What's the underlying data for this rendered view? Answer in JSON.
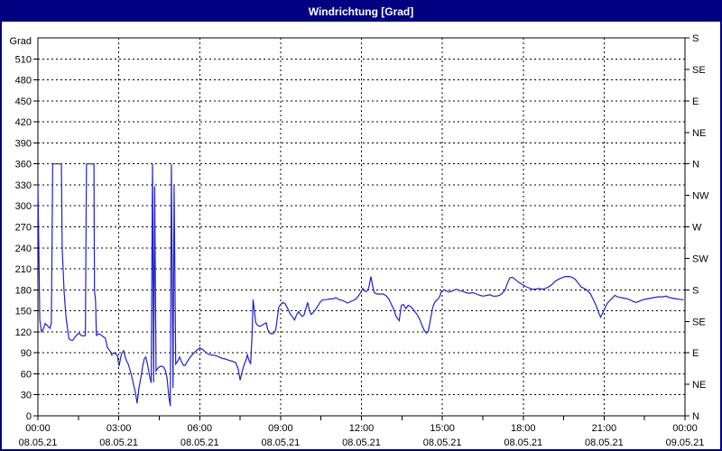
{
  "window": {
    "title": "Windrichtung [Grad]"
  },
  "colors": {
    "frame": "#000080",
    "titlebar_bg": "#000080",
    "titlebar_text": "#ffffff",
    "plot_bg": "#ffffff",
    "axis": "#000000",
    "grid": "#000000",
    "series_line": "#2020cf"
  },
  "chart_data": {
    "type": "line",
    "title": "Windrichtung [Grad]",
    "legend_position": "none",
    "grid": {
      "horizontal_step_deg": 30,
      "vertical_step_hours": 3,
      "dashed": true
    },
    "y_axis_left": {
      "label": "Grad",
      "min": 0,
      "max": 540,
      "tick_step": 30,
      "tick_labels": [
        0,
        30,
        60,
        90,
        120,
        150,
        180,
        210,
        240,
        270,
        300,
        330,
        360,
        390,
        420,
        450,
        480,
        510
      ]
    },
    "y_axis_right": {
      "unit": "compass",
      "tick_step_deg": 45,
      "ticks": [
        {
          "deg": 0,
          "label": "N"
        },
        {
          "deg": 45,
          "label": "NE"
        },
        {
          "deg": 90,
          "label": "E"
        },
        {
          "deg": 135,
          "label": "SE"
        },
        {
          "deg": 180,
          "label": "S"
        },
        {
          "deg": 225,
          "label": "SW"
        },
        {
          "deg": 270,
          "label": "W"
        },
        {
          "deg": 315,
          "label": "NW"
        },
        {
          "deg": 360,
          "label": "N"
        },
        {
          "deg": 405,
          "label": "NE"
        },
        {
          "deg": 450,
          "label": "E"
        },
        {
          "deg": 495,
          "label": "SE"
        },
        {
          "deg": 540,
          "label": "S"
        }
      ]
    },
    "x_axis": {
      "span_hours": 24,
      "minor_tick_hours": 1.5,
      "major_ticks": [
        {
          "hour": 0,
          "time": "00:00",
          "date": "08.05.21"
        },
        {
          "hour": 3,
          "time": "03:00",
          "date": "08.05.21"
        },
        {
          "hour": 6,
          "time": "06:00",
          "date": "08.05.21"
        },
        {
          "hour": 9,
          "time": "09:00",
          "date": "08.05.21"
        },
        {
          "hour": 12,
          "time": "12:00",
          "date": "08.05.21"
        },
        {
          "hour": 15,
          "time": "15:00",
          "date": "08.05.21"
        },
        {
          "hour": 18,
          "time": "18:00",
          "date": "08.05.21"
        },
        {
          "hour": 21,
          "time": "21:00",
          "date": "08.05.21"
        },
        {
          "hour": 24,
          "time": "00:00",
          "date": "09.05.21"
        }
      ]
    },
    "series": [
      {
        "name": "Windrichtung",
        "unit": "Grad",
        "points": [
          [
            0.0,
            334
          ],
          [
            0.07,
            137
          ],
          [
            0.13,
            120
          ],
          [
            0.2,
            124
          ],
          [
            0.27,
            132
          ],
          [
            0.37,
            128
          ],
          [
            0.45,
            125
          ],
          [
            0.5,
            133
          ],
          [
            0.55,
            360
          ],
          [
            0.87,
            360
          ],
          [
            0.9,
            240
          ],
          [
            0.97,
            178
          ],
          [
            1.04,
            141
          ],
          [
            1.15,
            110
          ],
          [
            1.23,
            108
          ],
          [
            1.3,
            108
          ],
          [
            1.37,
            112
          ],
          [
            1.45,
            116
          ],
          [
            1.53,
            118
          ],
          [
            1.6,
            115
          ],
          [
            1.7,
            114
          ],
          [
            1.76,
            115
          ],
          [
            1.8,
            360
          ],
          [
            2.08,
            360
          ],
          [
            2.1,
            179
          ],
          [
            2.14,
            164
          ],
          [
            2.17,
            115
          ],
          [
            2.25,
            117
          ],
          [
            2.33,
            116
          ],
          [
            2.42,
            113
          ],
          [
            2.5,
            111
          ],
          [
            2.58,
            97
          ],
          [
            2.65,
            94
          ],
          [
            2.7,
            91
          ],
          [
            2.74,
            87
          ],
          [
            2.8,
            90
          ],
          [
            2.87,
            89
          ],
          [
            2.95,
            86
          ],
          [
            3.01,
            71
          ],
          [
            3.08,
            85
          ],
          [
            3.11,
            89
          ],
          [
            3.18,
            93
          ],
          [
            3.24,
            84
          ],
          [
            3.28,
            79
          ],
          [
            3.35,
            74
          ],
          [
            3.42,
            65
          ],
          [
            3.5,
            53
          ],
          [
            3.56,
            42
          ],
          [
            3.62,
            33
          ],
          [
            3.68,
            18
          ],
          [
            3.75,
            40
          ],
          [
            3.83,
            57
          ],
          [
            3.9,
            74
          ],
          [
            3.95,
            82
          ],
          [
            4.0,
            84
          ],
          [
            4.05,
            76
          ],
          [
            4.1,
            66
          ],
          [
            4.15,
            55
          ],
          [
            4.2,
            47
          ],
          [
            4.25,
            360
          ],
          [
            4.29,
            48
          ],
          [
            4.33,
            328
          ],
          [
            4.38,
            64
          ],
          [
            4.45,
            68
          ],
          [
            4.55,
            71
          ],
          [
            4.65,
            70
          ],
          [
            4.72,
            66
          ],
          [
            4.79,
            54
          ],
          [
            4.86,
            26
          ],
          [
            4.91,
            14
          ],
          [
            4.95,
            360
          ],
          [
            5.01,
            40
          ],
          [
            5.05,
            329
          ],
          [
            5.11,
            74
          ],
          [
            5.18,
            78
          ],
          [
            5.26,
            84
          ],
          [
            5.33,
            77
          ],
          [
            5.4,
            72
          ],
          [
            5.46,
            72
          ],
          [
            5.55,
            78
          ],
          [
            5.65,
            84
          ],
          [
            5.79,
            90
          ],
          [
            5.9,
            94
          ],
          [
            6.0,
            97
          ],
          [
            6.1,
            95
          ],
          [
            6.22,
            91
          ],
          [
            6.33,
            88
          ],
          [
            6.45,
            87
          ],
          [
            6.6,
            86
          ],
          [
            6.72,
            84
          ],
          [
            6.85,
            82
          ],
          [
            6.97,
            81
          ],
          [
            7.1,
            79
          ],
          [
            7.22,
            78
          ],
          [
            7.33,
            76
          ],
          [
            7.42,
            68
          ],
          [
            7.5,
            51
          ],
          [
            7.57,
            63
          ],
          [
            7.65,
            73
          ],
          [
            7.72,
            80
          ],
          [
            7.77,
            87
          ],
          [
            7.83,
            79
          ],
          [
            7.89,
            75
          ],
          [
            7.95,
            120
          ],
          [
            7.98,
            166
          ],
          [
            8.03,
            150
          ],
          [
            8.08,
            133
          ],
          [
            8.15,
            129
          ],
          [
            8.25,
            128
          ],
          [
            8.33,
            130
          ],
          [
            8.42,
            132
          ],
          [
            8.47,
            133
          ],
          [
            8.52,
            124
          ],
          [
            8.58,
            119
          ],
          [
            8.67,
            117
          ],
          [
            8.75,
            118
          ],
          [
            8.82,
            123
          ],
          [
            8.88,
            140
          ],
          [
            8.93,
            155
          ],
          [
            9.0,
            159
          ],
          [
            9.08,
            162
          ],
          [
            9.17,
            160
          ],
          [
            9.27,
            153
          ],
          [
            9.35,
            146
          ],
          [
            9.45,
            141
          ],
          [
            9.52,
            137
          ],
          [
            9.6,
            145
          ],
          [
            9.67,
            149
          ],
          [
            9.73,
            145
          ],
          [
            9.8,
            142
          ],
          [
            9.87,
            144
          ],
          [
            9.93,
            152
          ],
          [
            10.0,
            162
          ],
          [
            10.07,
            151
          ],
          [
            10.13,
            145
          ],
          [
            10.2,
            147
          ],
          [
            10.3,
            152
          ],
          [
            10.4,
            158
          ],
          [
            10.48,
            163
          ],
          [
            10.57,
            166
          ],
          [
            10.7,
            166
          ],
          [
            10.82,
            167
          ],
          [
            10.95,
            167
          ],
          [
            11.05,
            169
          ],
          [
            11.17,
            166
          ],
          [
            11.28,
            165
          ],
          [
            11.4,
            163
          ],
          [
            11.48,
            161
          ],
          [
            11.58,
            163
          ],
          [
            11.7,
            165
          ],
          [
            11.8,
            167
          ],
          [
            11.9,
            172
          ],
          [
            11.97,
            176
          ],
          [
            12.05,
            182
          ],
          [
            12.13,
            178
          ],
          [
            12.2,
            178
          ],
          [
            12.27,
            183
          ],
          [
            12.35,
            199
          ],
          [
            12.42,
            185
          ],
          [
            12.48,
            176
          ],
          [
            12.57,
            174
          ],
          [
            12.68,
            174
          ],
          [
            12.8,
            174
          ],
          [
            12.9,
            172
          ],
          [
            13.0,
            168
          ],
          [
            13.1,
            160
          ],
          [
            13.2,
            152
          ],
          [
            13.3,
            141
          ],
          [
            13.4,
            136
          ],
          [
            13.48,
            158
          ],
          [
            13.56,
            159
          ],
          [
            13.65,
            153
          ],
          [
            13.73,
            158
          ],
          [
            13.83,
            156
          ],
          [
            13.92,
            152
          ],
          [
            14.0,
            148
          ],
          [
            14.08,
            144
          ],
          [
            14.17,
            137
          ],
          [
            14.25,
            129
          ],
          [
            14.33,
            122
          ],
          [
            14.42,
            118
          ],
          [
            14.48,
            121
          ],
          [
            14.57,
            140
          ],
          [
            14.65,
            156
          ],
          [
            14.73,
            163
          ],
          [
            14.82,
            166
          ],
          [
            14.9,
            170
          ],
          [
            14.97,
            178
          ],
          [
            15.07,
            180
          ],
          [
            15.18,
            178
          ],
          [
            15.28,
            177
          ],
          [
            15.4,
            179
          ],
          [
            15.52,
            181
          ],
          [
            15.63,
            179
          ],
          [
            15.75,
            178
          ],
          [
            15.88,
            176
          ],
          [
            16.0,
            175
          ],
          [
            16.13,
            176
          ],
          [
            16.27,
            174
          ],
          [
            16.4,
            172
          ],
          [
            16.52,
            171
          ],
          [
            16.65,
            172
          ],
          [
            16.77,
            173
          ],
          [
            16.88,
            171
          ],
          [
            17.0,
            171
          ],
          [
            17.12,
            172
          ],
          [
            17.22,
            175
          ],
          [
            17.33,
            180
          ],
          [
            17.42,
            190
          ],
          [
            17.5,
            197
          ],
          [
            17.6,
            198
          ],
          [
            17.7,
            195
          ],
          [
            17.82,
            191
          ],
          [
            17.95,
            188
          ],
          [
            18.08,
            185
          ],
          [
            18.2,
            183
          ],
          [
            18.33,
            181
          ],
          [
            18.45,
            181
          ],
          [
            18.58,
            182
          ],
          [
            18.7,
            181
          ],
          [
            18.82,
            182
          ],
          [
            18.93,
            184
          ],
          [
            19.05,
            187
          ],
          [
            19.18,
            192
          ],
          [
            19.3,
            195
          ],
          [
            19.42,
            197
          ],
          [
            19.55,
            199
          ],
          [
            19.7,
            199
          ],
          [
            19.82,
            198
          ],
          [
            19.93,
            195
          ],
          [
            20.05,
            189
          ],
          [
            20.15,
            184
          ],
          [
            20.27,
            182
          ],
          [
            20.38,
            179
          ],
          [
            20.5,
            174
          ],
          [
            20.6,
            166
          ],
          [
            20.7,
            158
          ],
          [
            20.8,
            147
          ],
          [
            20.87,
            141
          ],
          [
            20.95,
            147
          ],
          [
            21.03,
            154
          ],
          [
            21.12,
            161
          ],
          [
            21.22,
            165
          ],
          [
            21.32,
            169
          ],
          [
            21.4,
            172
          ],
          [
            21.5,
            170
          ],
          [
            21.62,
            169
          ],
          [
            21.75,
            168
          ],
          [
            21.88,
            167
          ],
          [
            22.0,
            165
          ],
          [
            22.1,
            163
          ],
          [
            22.2,
            162
          ],
          [
            22.32,
            164
          ],
          [
            22.45,
            166
          ],
          [
            22.58,
            167
          ],
          [
            22.72,
            168
          ],
          [
            22.85,
            169
          ],
          [
            23.0,
            170
          ],
          [
            23.15,
            170
          ],
          [
            23.3,
            171
          ],
          [
            23.42,
            169
          ],
          [
            23.55,
            168
          ],
          [
            23.7,
            167
          ],
          [
            23.85,
            166
          ],
          [
            23.95,
            166
          ]
        ]
      }
    ]
  }
}
